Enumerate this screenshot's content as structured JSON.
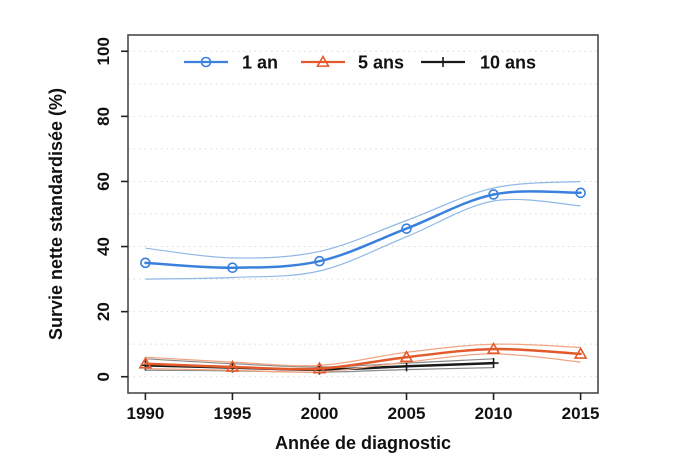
{
  "figure": {
    "background": "#ffffff",
    "colors": {
      "grid": "#d9d9d9",
      "box": "#4a4a4a",
      "tick": "#222222",
      "text": "#111111"
    }
  },
  "chart_data": {
    "type": "line",
    "title": "",
    "xlabel": "Année de diagnostic",
    "ylabel": "Survie nette standardisée (%)",
    "x_ticks": [
      1990,
      1995,
      2000,
      2005,
      2010,
      2015
    ],
    "y_ticks": [
      0,
      20,
      40,
      60,
      80,
      100
    ],
    "grid_lines_y": [
      0,
      10,
      20,
      30,
      40,
      50,
      60,
      70,
      80,
      90,
      100
    ],
    "xlim": [
      1989,
      2016
    ],
    "ylim": [
      -5,
      105
    ],
    "grid": "horizontal-dotted",
    "legend_position": "top-inside",
    "series": [
      {
        "name": "10 ans",
        "marker": "plus",
        "color": "#1a1a1a",
        "ci_color": "#8a8a8a",
        "x": [
          1990,
          1995,
          2000,
          2005,
          2010
        ],
        "values": [
          3.5,
          2.8,
          2.2,
          3.2,
          4.2
        ],
        "ci_low": [
          2.0,
          1.8,
          1.4,
          2.2,
          2.8
        ],
        "ci_high": [
          5.5,
          4.0,
          3.0,
          4.2,
          5.5
        ]
      },
      {
        "name": "5 ans",
        "marker": "triangle",
        "color": "#e25a2c",
        "ci_color": "#f2a482",
        "x": [
          1990,
          1995,
          2000,
          2005,
          2010,
          2015
        ],
        "values": [
          4.0,
          3.0,
          2.5,
          6.0,
          8.5,
          7.0
        ],
        "ci_low": [
          2.5,
          2.0,
          1.5,
          4.5,
          7.0,
          4.5
        ],
        "ci_high": [
          6.0,
          4.5,
          3.5,
          7.5,
          10.0,
          9.0
        ]
      },
      {
        "name": "1 an",
        "marker": "circle",
        "color": "#3a80dc",
        "ci_color": "#90b9e6",
        "x": [
          1990,
          1995,
          2000,
          2005,
          2010,
          2015
        ],
        "values": [
          35.0,
          33.5,
          35.5,
          45.5,
          56.0,
          56.5
        ],
        "ci_low": [
          30.0,
          30.5,
          32.5,
          43.0,
          54.0,
          52.5
        ],
        "ci_high": [
          39.5,
          36.5,
          38.5,
          48.0,
          58.0,
          60.0
        ]
      }
    ],
    "legend_order": [
      "1 an",
      "5 ans",
      "10 ans"
    ]
  }
}
